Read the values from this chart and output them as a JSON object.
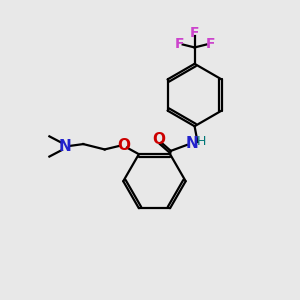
{
  "bg_color": "#e8e8e8",
  "bond_color": "#000000",
  "N_color": "#2222cc",
  "O_color": "#cc0000",
  "F_color": "#cc44cc",
  "H_color": "#007777",
  "lw": 1.6,
  "figsize": [
    3.0,
    3.0
  ],
  "dpi": 100,
  "xlim": [
    0,
    10
  ],
  "ylim": [
    0,
    10
  ]
}
